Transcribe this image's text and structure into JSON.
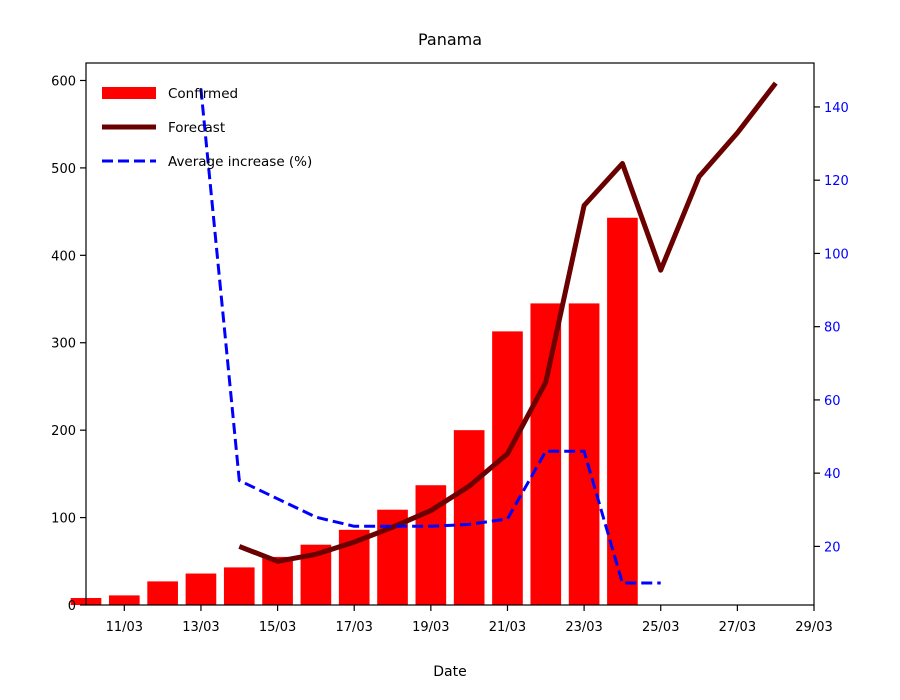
{
  "chart_data": {
    "type": "bar",
    "title": "Panama",
    "xlabel": "Date",
    "ylabel": "",
    "y2label": "",
    "ylim": [
      0,
      620
    ],
    "y2lim": [
      4,
      152
    ],
    "xlim": [
      "2020-03-10",
      "2020-03-29"
    ],
    "x_ticks": [
      "11/03",
      "13/03",
      "15/03",
      "17/03",
      "19/03",
      "21/03",
      "23/03",
      "25/03",
      "27/03",
      "29/03"
    ],
    "x_tick_dates": [
      "2020-03-11",
      "2020-03-13",
      "2020-03-15",
      "2020-03-17",
      "2020-03-19",
      "2020-03-21",
      "2020-03-23",
      "2020-03-25",
      "2020-03-27",
      "2020-03-29"
    ],
    "y_ticks": [
      0,
      100,
      200,
      300,
      400,
      500,
      600
    ],
    "y2_ticks": [
      20,
      40,
      60,
      80,
      100,
      120,
      140
    ],
    "grid": false,
    "legend_position": "top-left",
    "series": [
      {
        "name": "Confirmed",
        "kind": "bar",
        "color": "#ff0000",
        "x": [
          "2020-03-10",
          "2020-03-11",
          "2020-03-12",
          "2020-03-13",
          "2020-03-14",
          "2020-03-15",
          "2020-03-16",
          "2020-03-17",
          "2020-03-18",
          "2020-03-19",
          "2020-03-20",
          "2020-03-21",
          "2020-03-22",
          "2020-03-23",
          "2020-03-24",
          "2020-03-25"
        ],
        "values": [
          8,
          11,
          27,
          36,
          43,
          55,
          69,
          86,
          109,
          137,
          200,
          313,
          345,
          345,
          443,
          null
        ]
      },
      {
        "name": "Forecast",
        "kind": "line",
        "color": "#6b0000",
        "x": [
          "2020-03-14",
          "2020-03-15",
          "2020-03-16",
          "2020-03-17",
          "2020-03-18",
          "2020-03-19",
          "2020-03-20",
          "2020-03-21",
          "2020-03-22",
          "2020-03-23",
          "2020-03-24",
          "2020-03-25",
          "2020-03-26",
          "2020-03-27",
          "2020-03-28"
        ],
        "values": [
          67,
          50,
          58,
          72,
          89,
          108,
          136,
          173,
          255,
          457,
          505,
          383,
          490,
          540,
          597
        ]
      },
      {
        "name": "Average increase (%)",
        "kind": "dashed-line",
        "axis": "right",
        "color": "#0000ff",
        "x": [
          "2020-03-13",
          "2020-03-14",
          "2020-03-15",
          "2020-03-16",
          "2020-03-17",
          "2020-03-18",
          "2020-03-19",
          "2020-03-20",
          "2020-03-21",
          "2020-03-22",
          "2020-03-23",
          "2020-03-24",
          "2020-03-25"
        ],
        "values": [
          145,
          38,
          33,
          28,
          25.5,
          25.5,
          25.5,
          26,
          27.5,
          46,
          46,
          10,
          10
        ]
      }
    ]
  }
}
